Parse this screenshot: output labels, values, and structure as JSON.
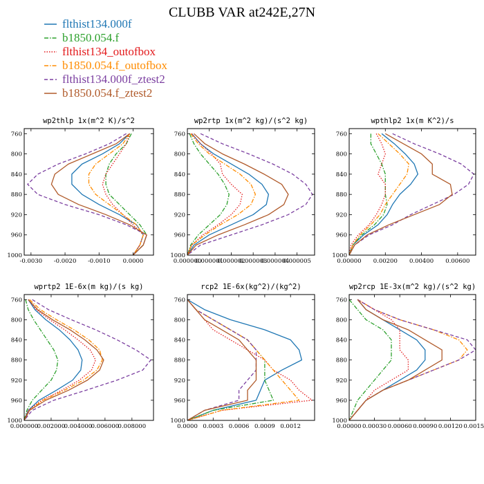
{
  "figure_title": "CLUBB VAR at242E,27N",
  "legend": [
    {
      "label": "flthist134.000f",
      "color": "#1f77b4",
      "dash": "solid"
    },
    {
      "label": "b1850.054.f",
      "color": "#2ca02c",
      "dash": "dashdot"
    },
    {
      "label": "flthist134_outofbox",
      "color": "#e31a1c",
      "dash": "dot"
    },
    {
      "label": "b1850.054.f_outofbox",
      "color": "#ff8c00",
      "dash": "dashdot"
    },
    {
      "label": "flthist134.000f_ztest2",
      "color": "#7b3fa0",
      "dash": "dash"
    },
    {
      "label": "b1850.054.f_ztest2",
      "color": "#b05a2a",
      "dash": "solid"
    }
  ],
  "chart_data": [
    {
      "type": "line",
      "title": "wp2thlp  1x(m^2 K)/s^2",
      "xlim": [
        -0.0032,
        0.0006
      ],
      "xticks": [
        -0.003,
        -0.002,
        -0.001,
        0.0
      ],
      "xtick_labels": [
        "-0.0030",
        "-0.0020",
        "-0.0010",
        "0.0000"
      ],
      "ylim": [
        1000,
        750
      ],
      "yticks": [
        760,
        800,
        840,
        880,
        920,
        960,
        1000
      ],
      "y": [
        760,
        780,
        800,
        820,
        840,
        860,
        880,
        900,
        920,
        940,
        960,
        980,
        1000
      ],
      "series": [
        {
          "values": [
            -0.0001,
            -0.0004,
            -0.0009,
            -0.0015,
            -0.0018,
            -0.0018,
            -0.0015,
            -0.001,
            -0.0004,
            0.0001,
            0.0003,
            0.0002,
            0.0
          ]
        },
        {
          "values": [
            -5e-05,
            -0.0002,
            -0.0005,
            -0.0007,
            -0.0008,
            -0.0008,
            -0.0007,
            -0.0004,
            -0.0001,
            0.0002,
            0.0004,
            0.0003,
            0.0
          ]
        },
        {
          "values": [
            -0.0001,
            -0.0002,
            -0.0004,
            -0.0006,
            -0.0008,
            -0.0009,
            -0.0008,
            -0.0006,
            -0.0003,
            0.0,
            0.0003,
            0.0002,
            0.0
          ]
        },
        {
          "values": [
            -0.0001,
            -0.0003,
            -0.0007,
            -0.0011,
            -0.0013,
            -0.0013,
            -0.0011,
            -0.0007,
            -0.0003,
            0.0001,
            0.0003,
            0.0002,
            0.0
          ]
        },
        {
          "values": [
            -0.0002,
            -0.0007,
            -0.0014,
            -0.0022,
            -0.0028,
            -0.0031,
            -0.0028,
            -0.002,
            -0.001,
            -0.0002,
            0.0004,
            0.0003,
            0.0
          ]
        },
        {
          "values": [
            -0.0001,
            -0.0005,
            -0.0012,
            -0.0019,
            -0.0023,
            -0.0024,
            -0.0022,
            -0.0016,
            -0.0008,
            -0.0001,
            0.0004,
            0.0003,
            0.0
          ]
        }
      ]
    },
    {
      "type": "line",
      "title": "wp2rtp  1x(m^2 kg)/(s^2 kg)",
      "xlim": [
        0.0,
        5.8e-06
      ],
      "xticks": [
        0.0,
        1e-06,
        2e-06,
        3e-06,
        4e-06,
        5e-06
      ],
      "xtick_labels": [
        "0.000000",
        "0.000001",
        "0.000002",
        "0.000003",
        "0.000004",
        "0.000005"
      ],
      "ylim": [
        1000,
        750
      ],
      "yticks": [
        760,
        800,
        840,
        880,
        920,
        960,
        1000
      ],
      "y": [
        760,
        780,
        800,
        820,
        840,
        860,
        880,
        900,
        920,
        940,
        960,
        980,
        1000
      ],
      "series": [
        {
          "values": [
            2e-07,
            6e-07,
            1.2e-06,
            2e-06,
            2.8e-06,
            3.4e-06,
            3.7e-06,
            3.6e-06,
            3e-06,
            2e-06,
            1e-06,
            3e-07,
            0.0
          ]
        },
        {
          "values": [
            1e-07,
            3e-07,
            6e-07,
            1e-06,
            1.4e-06,
            1.7e-06,
            1.9e-06,
            1.8e-06,
            1.5e-06,
            1e-06,
            5e-07,
            1.5e-07,
            0.0
          ]
        },
        {
          "values": [
            2e-07,
            6e-07,
            1.1e-06,
            1.5e-06,
            1.6e-06,
            2e-06,
            2.5e-06,
            2.4e-06,
            2e-06,
            1.4e-06,
            7e-07,
            2e-07,
            0.0
          ]
        },
        {
          "values": [
            1.5e-07,
            5e-07,
            1e-06,
            1.7e-06,
            2.4e-06,
            2.9e-06,
            3.1e-06,
            2.9e-06,
            2.3e-06,
            1.5e-06,
            8e-07,
            2e-07,
            0.0
          ]
        },
        {
          "values": [
            6e-07,
            1.6e-06,
            2.8e-06,
            3.9e-06,
            4.8e-06,
            5.4e-06,
            5.7e-06,
            5.4e-06,
            4.6e-06,
            3.4e-06,
            2e-06,
            6e-07,
            0.0
          ]
        },
        {
          "values": [
            3e-07,
            8e-07,
            1.6e-06,
            2.6e-06,
            3.5e-06,
            4.3e-06,
            4.6e-06,
            4.4e-06,
            3.7e-06,
            2.6e-06,
            1.4e-06,
            4e-07,
            0.0
          ]
        }
      ]
    },
    {
      "type": "line",
      "title": "wpthlp2  1x(m K^2)/s",
      "xlim": [
        0.0,
        0.007
      ],
      "xticks": [
        0.0,
        0.002,
        0.004,
        0.006
      ],
      "xtick_labels": [
        "0.00000",
        "0.00200",
        "0.00400",
        "0.00600"
      ],
      "ylim": [
        1000,
        750
      ],
      "yticks": [
        760,
        800,
        840,
        880,
        920,
        960,
        1000
      ],
      "y": [
        760,
        780,
        800,
        820,
        840,
        860,
        880,
        900,
        920,
        940,
        960,
        980,
        1000
      ],
      "series": [
        {
          "values": [
            0.0018,
            0.0025,
            0.0031,
            0.0036,
            0.0038,
            0.0034,
            0.0028,
            0.0024,
            0.0021,
            0.0016,
            0.0008,
            0.0002,
            0.0
          ]
        },
        {
          "values": [
            0.0012,
            0.0012,
            0.0015,
            0.0018,
            0.002,
            0.002,
            0.002,
            0.0021,
            0.0019,
            0.0014,
            0.0007,
            0.0002,
            0.0
          ]
        },
        {
          "values": [
            0.0015,
            0.0018,
            0.002,
            0.0018,
            0.0016,
            0.002,
            0.002,
            0.0018,
            0.0015,
            0.0011,
            0.0005,
            0.0001,
            0.0
          ]
        },
        {
          "values": [
            0.0016,
            0.0022,
            0.0028,
            0.0033,
            0.0032,
            0.0028,
            0.0024,
            0.002,
            0.0017,
            0.0012,
            0.0006,
            0.0002,
            0.0
          ]
        },
        {
          "values": [
            0.0024,
            0.0036,
            0.005,
            0.0062,
            0.0069,
            0.0066,
            0.0058,
            0.0046,
            0.0034,
            0.0024,
            0.0011,
            0.0003,
            0.0
          ]
        },
        {
          "values": [
            0.002,
            0.003,
            0.004,
            0.0046,
            0.0046,
            0.0056,
            0.0057,
            0.005,
            0.0036,
            0.0022,
            0.001,
            0.0003,
            0.0
          ]
        }
      ]
    },
    {
      "type": "line",
      "title": "wprtp2  1E-6x(m kg)/(s kg)",
      "xlim": [
        0.0,
        0.0096
      ],
      "xticks": [
        0.0,
        0.002,
        0.004,
        0.006,
        0.008
      ],
      "xtick_labels": [
        "0.000000",
        "0.002000",
        "0.004000",
        "0.006000",
        "0.008000"
      ],
      "ylim": [
        1000,
        750
      ],
      "yticks": [
        760,
        800,
        840,
        880,
        920,
        960,
        1000
      ],
      "y": [
        760,
        780,
        800,
        820,
        840,
        860,
        880,
        900,
        920,
        940,
        960,
        980,
        1000
      ],
      "series": [
        {
          "values": [
            0.0003,
            0.0008,
            0.0016,
            0.0026,
            0.0034,
            0.004,
            0.0043,
            0.0042,
            0.0036,
            0.0024,
            0.0011,
            0.0003,
            0.0
          ]
        },
        {
          "values": [
            0.0001,
            0.0003,
            0.0007,
            0.0012,
            0.0017,
            0.0022,
            0.0025,
            0.0024,
            0.002,
            0.0013,
            0.0006,
            0.0002,
            0.0
          ]
        },
        {
          "values": [
            0.0003,
            0.0009,
            0.0019,
            0.003,
            0.004,
            0.0049,
            0.0053,
            0.005,
            0.0041,
            0.0028,
            0.0013,
            0.0003,
            0.0
          ]
        },
        {
          "values": [
            0.0004,
            0.0012,
            0.0024,
            0.0037,
            0.0048,
            0.0056,
            0.0058,
            0.0054,
            0.0044,
            0.003,
            0.0014,
            0.0004,
            0.0
          ]
        },
        {
          "values": [
            0.0006,
            0.0018,
            0.0035,
            0.0053,
            0.0069,
            0.0083,
            0.0094,
            0.0088,
            0.0069,
            0.0046,
            0.0022,
            0.0006,
            0.0
          ]
        },
        {
          "values": [
            0.0003,
            0.001,
            0.0021,
            0.0034,
            0.0045,
            0.0054,
            0.0059,
            0.0056,
            0.0047,
            0.0033,
            0.0016,
            0.0004,
            0.0
          ]
        }
      ]
    },
    {
      "type": "line",
      "title": "rcp2  1E-6x(kg^2)/(kg^2)",
      "xlim": [
        0.0,
        0.00148
      ],
      "xticks": [
        0.0,
        0.0003,
        0.0006,
        0.0009,
        0.0012
      ],
      "xtick_labels": [
        "0.0000",
        "0.0003",
        "0.0006",
        "0.0009",
        "0.0012"
      ],
      "ylim": [
        1000,
        750
      ],
      "yticks": [
        760,
        800,
        840,
        880,
        920,
        960,
        1000
      ],
      "y": [
        760,
        780,
        800,
        820,
        840,
        860,
        880,
        900,
        920,
        940,
        960,
        980,
        1000
      ],
      "series": [
        {
          "values": [
            0.0,
            0.0002,
            0.0005,
            0.0009,
            0.0012,
            0.0013,
            0.00133,
            0.0011,
            0.0009,
            0.00085,
            0.0008,
            0.0003,
            0.0
          ]
        },
        {
          "values": [
            0.0,
            0.0001,
            0.0003,
            0.0005,
            0.0007,
            0.0008,
            0.0009,
            0.0009,
            0.0009,
            0.00095,
            0.001,
            0.0003,
            0.0
          ]
        },
        {
          "values": [
            0.0,
            0.0001,
            0.0002,
            0.0003,
            0.0005,
            0.0007,
            0.0009,
            0.001,
            0.0012,
            0.0013,
            0.00145,
            0.0004,
            0.0
          ]
        },
        {
          "values": [
            0.0,
            0.0001,
            0.0003,
            0.0005,
            0.0007,
            0.0008,
            0.0009,
            0.001,
            0.0011,
            0.0012,
            0.0013,
            0.0004,
            0.0
          ]
        },
        {
          "values": [
            0.0,
            0.0001,
            0.0003,
            0.0005,
            0.0007,
            0.0008,
            0.0008,
            0.0008,
            0.0007,
            0.0006,
            0.0006,
            0.0002,
            0.0
          ]
        },
        {
          "values": [
            0.0,
            0.0001,
            0.0002,
            0.0004,
            0.0006,
            0.0007,
            0.0008,
            0.0008,
            0.0008,
            0.0007,
            0.0007,
            0.0002,
            0.0
          ]
        }
      ]
    },
    {
      "type": "line",
      "title": "wp2rcp  1E-3x(m^2 kg)/(s^2 kg)",
      "xlim": [
        0.0,
        0.0015
      ],
      "xticks": [
        0.0,
        0.0003,
        0.0006,
        0.0009,
        0.0012,
        0.0015
      ],
      "xtick_labels": [
        "0.00000",
        "0.00030",
        "0.00060",
        "0.00090",
        "0.00120",
        "0.00150"
      ],
      "ylim": [
        1000,
        750
      ],
      "yticks": [
        760,
        800,
        840,
        880,
        920,
        960,
        1000
      ],
      "y": [
        760,
        780,
        800,
        820,
        840,
        860,
        880,
        900,
        920,
        940,
        960,
        980,
        1000
      ],
      "series": [
        {
          "values": [
            0.0001,
            0.0002,
            0.0004,
            0.0006,
            0.0008,
            0.0009,
            0.0009,
            0.0008,
            0.0006,
            0.0004,
            0.0002,
            0.0001,
            0.0
          ]
        },
        {
          "values": [
            0.0,
            0.0001,
            0.0002,
            0.0004,
            0.0005,
            0.0005,
            0.0005,
            0.0004,
            0.0003,
            0.0002,
            0.0001,
            5e-05,
            0.0
          ]
        },
        {
          "values": [
            0.0001,
            0.0003,
            0.0005,
            0.0006,
            0.0006,
            0.0006,
            0.0007,
            0.0007,
            0.0005,
            0.0003,
            0.0002,
            0.0001,
            0.0
          ]
        },
        {
          "values": [
            0.0001,
            0.0003,
            0.0006,
            0.001,
            0.0013,
            0.0014,
            0.0013,
            0.001,
            0.0007,
            0.0004,
            0.0002,
            0.0001,
            0.0
          ]
        },
        {
          "values": [
            0.0001,
            0.0003,
            0.0006,
            0.001,
            0.0014,
            0.0015,
            0.0013,
            0.001,
            0.0007,
            0.0004,
            0.0002,
            0.0001,
            0.0
          ]
        },
        {
          "values": [
            0.0001,
            0.0002,
            0.0004,
            0.0007,
            0.0009,
            0.0011,
            0.0011,
            0.0009,
            0.0007,
            0.0004,
            0.0002,
            0.0001,
            0.0
          ]
        }
      ]
    }
  ]
}
